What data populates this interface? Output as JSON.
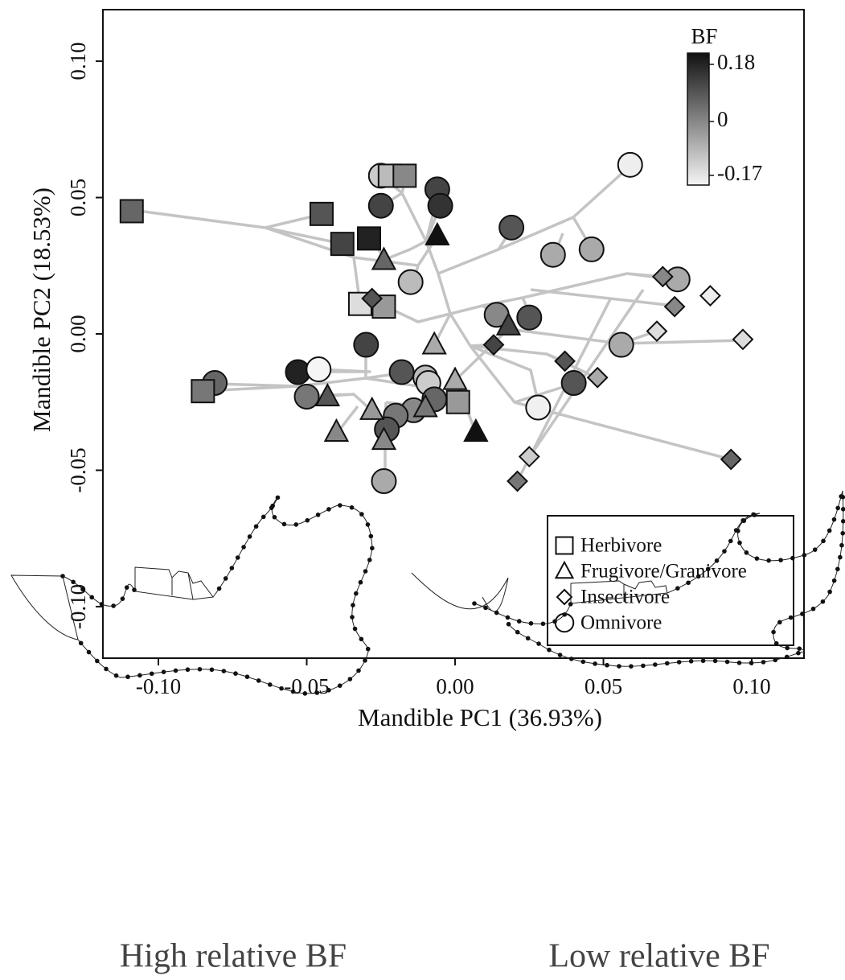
{
  "chart_data": {
    "type": "scatter",
    "x_label": "Mandible PC1 (36.93%)",
    "y_label": "Mandible PC2 (18.53%)",
    "xlim": [
      -0.1187,
      0.1176
    ],
    "ylim": [
      -0.1189,
      0.1189
    ],
    "xticks": [
      {
        "value": -0.1,
        "label": "-0.10"
      },
      {
        "value": -0.05,
        "label": "-0.05"
      },
      {
        "value": 0,
        "label": "0.00"
      },
      {
        "value": 0.05,
        "label": "0.05"
      },
      {
        "value": 0.1,
        "label": "0.10"
      }
    ],
    "yticks": [
      {
        "value": -0.1,
        "label": "-0.10"
      },
      {
        "value": -0.05,
        "label": "-0.05"
      },
      {
        "value": 0,
        "label": "0.00"
      },
      {
        "value": 0.05,
        "label": "0.05"
      },
      {
        "value": 0.1,
        "label": "0.10"
      }
    ],
    "colorbar": {
      "title": "BF",
      "clim": [
        -0.17,
        0.18
      ],
      "ticks": [
        0.18,
        0,
        -0.17
      ],
      "colors": [
        "#f5f5f5",
        "#111111"
      ]
    },
    "legend": "bottom right",
    "series": [
      {
        "name": "Herbivore",
        "marker": "square",
        "x": [
          -0.109,
          -0.085,
          -0.045,
          -0.038,
          -0.029,
          -0.032,
          -0.024,
          -0.022,
          -0.017,
          0.001
        ],
        "y": [
          0.045,
          -0.021,
          0.044,
          0.033,
          0.035,
          0.011,
          0.01,
          0.058,
          0.058,
          -0.025
        ],
        "bf": [
          0.05,
          0.023,
          0.076,
          0.102,
          0.154,
          -0.133,
          -0.029,
          -0.081,
          -0.003,
          -0.029
        ]
      },
      {
        "name": "Frugivore/Granivore",
        "marker": "triangle",
        "x": [
          -0.006,
          -0.024,
          -0.007,
          0.0,
          -0.043,
          -0.04,
          -0.028,
          -0.024,
          -0.01,
          0.007,
          0.018
        ],
        "y": [
          0.036,
          0.027,
          -0.004,
          -0.017,
          -0.023,
          -0.036,
          -0.028,
          -0.039,
          -0.027,
          -0.036,
          0.003
        ],
        "bf": [
          0.18,
          0.05,
          -0.055,
          -0.055,
          0.076,
          -0.003,
          -0.029,
          -0.003,
          0.023,
          0.18,
          0.102
        ]
      },
      {
        "name": "Insectivore",
        "marker": "diamond",
        "x": [
          -0.028,
          0.013,
          0.037,
          0.048,
          0.025,
          0.021,
          0.07,
          0.074,
          0.068,
          0.086,
          0.097,
          0.093
        ],
        "y": [
          0.013,
          -0.004,
          -0.01,
          -0.016,
          -0.045,
          -0.054,
          0.021,
          0.01,
          0.001,
          0.014,
          -0.002,
          -0.046
        ],
        "bf": [
          0.076,
          0.102,
          0.076,
          -0.055,
          -0.107,
          0.023,
          -0.003,
          -0.003,
          -0.133,
          -0.159,
          -0.133,
          0.05
        ]
      },
      {
        "name": "Omnivore",
        "marker": "circle",
        "x": [
          -0.025,
          -0.025,
          -0.006,
          -0.005,
          0.019,
          0.059,
          0.046,
          0.033,
          -0.015,
          0.075,
          0.014,
          0.025,
          -0.03,
          0.056,
          -0.053,
          -0.046,
          -0.081,
          -0.05,
          -0.018,
          -0.01,
          -0.009,
          -0.007,
          -0.014,
          -0.02,
          -0.023,
          -0.024,
          0.04,
          0.028
        ],
        "y": [
          0.058,
          0.047,
          0.053,
          0.047,
          0.039,
          0.062,
          0.031,
          0.029,
          0.019,
          0.02,
          0.007,
          0.006,
          -0.004,
          -0.004,
          -0.014,
          -0.013,
          -0.018,
          -0.023,
          -0.014,
          -0.016,
          -0.018,
          -0.024,
          -0.028,
          -0.03,
          -0.035,
          -0.054,
          -0.018,
          -0.027
        ],
        "bf": [
          -0.107,
          0.102,
          0.102,
          0.128,
          0.076,
          -0.159,
          -0.055,
          -0.055,
          -0.081,
          -0.055,
          -0.003,
          0.076,
          0.102,
          -0.055,
          0.154,
          -0.17,
          0.05,
          0.023,
          0.076,
          -0.081,
          -0.107,
          0.05,
          -0.003,
          0.023,
          0.076,
          -0.055,
          0.076,
          -0.162
        ]
      }
    ]
  },
  "panels": [
    "High relative BF",
    "Low relative BF"
  ]
}
